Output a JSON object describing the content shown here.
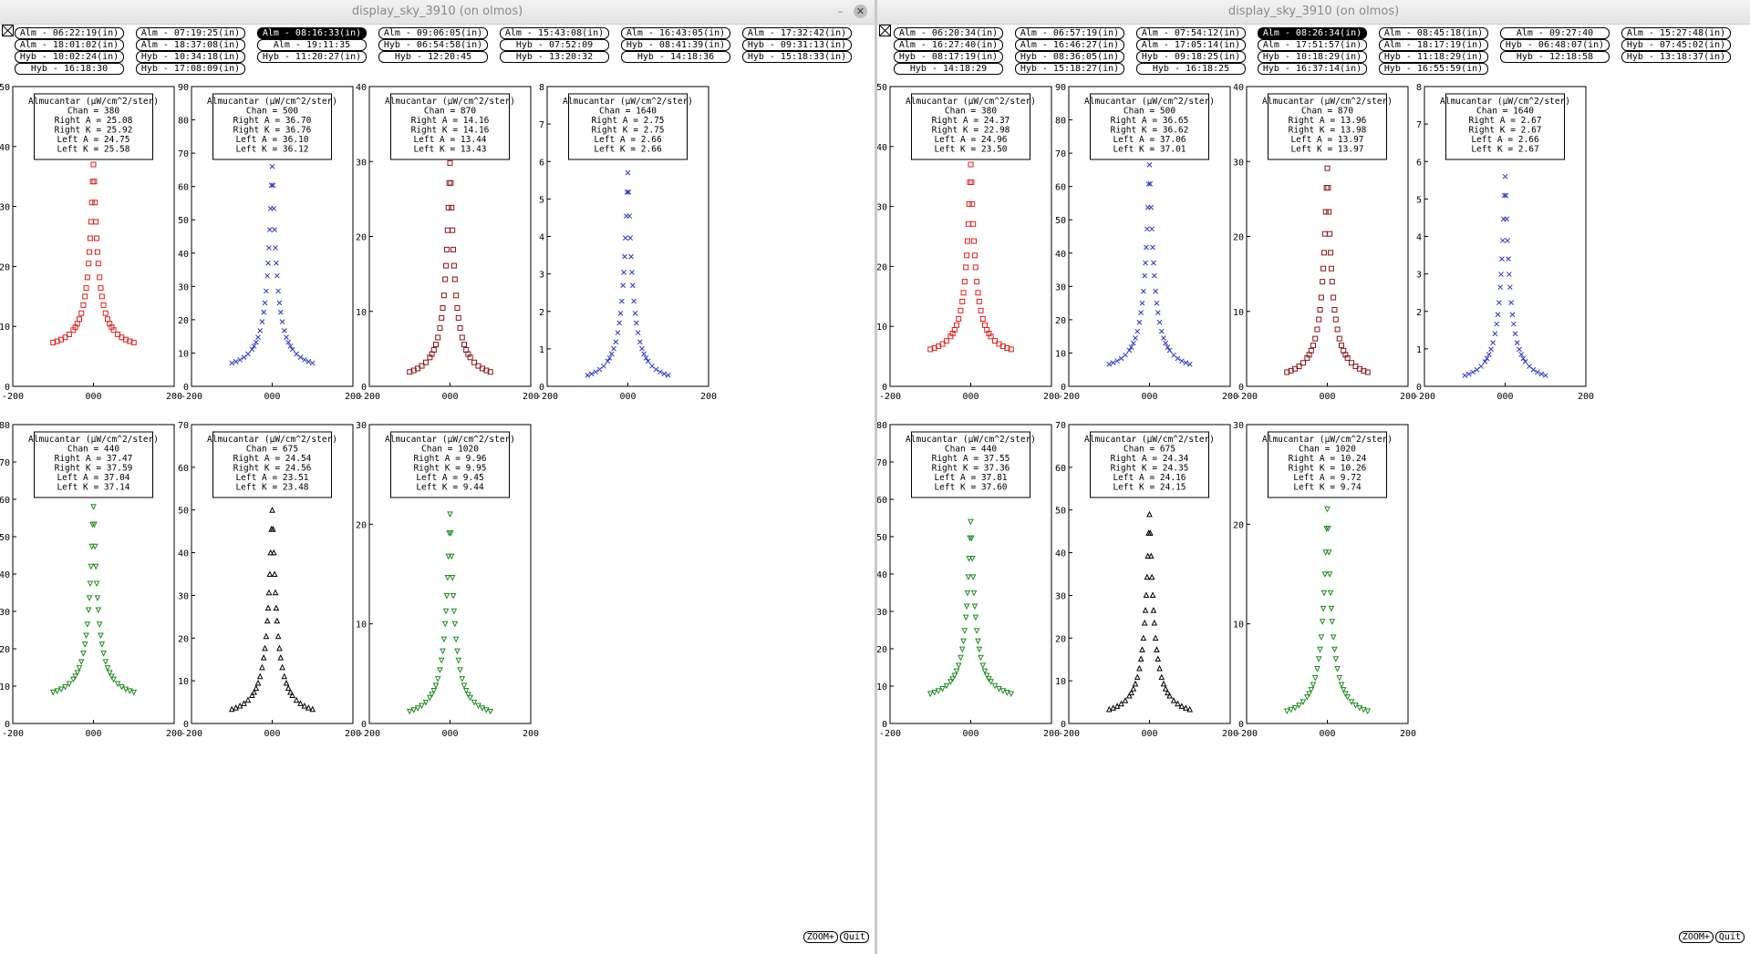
{
  "windows": [
    {
      "title": "display_sky_3910 (on olmos)",
      "buttons": [
        [
          "Alm - 06:22:19(in)",
          "Alm - 07:19:25(in)",
          "Alm - 08:16:33(in)",
          "Alm - 09:06:05(in)",
          "Alm - 15:43:08(in)",
          "Alm - 16:43:05(in)",
          "Alm - 17:32:42(in)"
        ],
        [
          "Alm - 18:01:02(in)",
          "Alm - 18:37:08(in)",
          "Alm - 19:11:35",
          "Hyb - 06:54:58(in)",
          "Hyb - 07:52:09",
          "Hyb - 08:41:39(in)",
          "Hyb - 09:31:13(in)"
        ],
        [
          "Hyb - 10:02:24(in)",
          "Hyb - 10:34:18(in)",
          "Hyb - 11:20:27(in)",
          "Hyb - 12:20:45",
          "Hyb - 13:20:32",
          "Hyb - 14:18:36",
          "Hyb - 15:18:33(in)"
        ],
        [
          "Hyb - 16:18:30",
          "Hyb - 17:08:09(in)"
        ]
      ],
      "active_button": "Alm - 08:16:33(in)",
      "zoom_label": "ZOOM+",
      "quit_label": "Quit",
      "panels": [
        {
          "ymax": 50,
          "yticks": [
            0,
            10,
            20,
            30,
            40,
            50
          ],
          "color": "#e0201c",
          "marker": "square",
          "box": [
            "Almucantar (µW/cm^2/ster)",
            "Chan = 380",
            "Right A = 25.08",
            "Right K = 25.92",
            "Left A = 24.75",
            "Left K = 25.58"
          ],
          "peak": 37,
          "base": 5.8,
          "xmin": -100,
          "xmax": 100
        },
        {
          "ymax": 90,
          "yticks": [
            0,
            10,
            20,
            30,
            40,
            50,
            60,
            70,
            80,
            90
          ],
          "color": "#2a36c8",
          "marker": "x",
          "box": [
            "Almucantar (µW/cm^2/ster)",
            "Chan = 500",
            "Right A = 36.70",
            "Right K = 36.76",
            "Left A = 36.10",
            "Left K = 36.12"
          ],
          "peak": 66,
          "base": 4,
          "xmin": -100,
          "xmax": 100
        },
        {
          "ymax": 40,
          "yticks": [
            0,
            10,
            20,
            30,
            40
          ],
          "color": "#8a1418",
          "marker": "square",
          "box": [
            "Almucantar (µW/cm^2/ster)",
            "Chan = 870",
            "Right A = 14.16",
            "Right K = 14.16",
            "Left A = 13.44",
            "Left K = 13.43"
          ],
          "peak": 29.8,
          "base": 0.5,
          "xmin": -100,
          "xmax": 100
        },
        {
          "ymax": 8,
          "yticks": [
            0,
            1,
            2,
            3,
            4,
            5,
            6,
            7,
            8
          ],
          "color": "#2a36c8",
          "marker": "x",
          "box": [
            "Almucantar (µW/cm^2/ster)",
            "Chan = 1640",
            "Right A = 2.75",
            "Right K = 2.75",
            "Left A = 2.66",
            "Left K = 2.66"
          ],
          "peak": 5.7,
          "base": 0.02,
          "xmin": -100,
          "xmax": 100
        },
        {
          "ymax": 80,
          "yticks": [
            0,
            10,
            20,
            30,
            40,
            50,
            60,
            70,
            80
          ],
          "color": "#1f8a1f",
          "marker": "tri-down",
          "box": [
            "Almucantar (µW/cm^2/ster)",
            "Chan = 440",
            "Right A = 37.47",
            "Right K = 37.59",
            "Left A = 37.04",
            "Left K = 37.14"
          ],
          "peak": 58,
          "base": 5.8,
          "xmin": -100,
          "xmax": 100
        },
        {
          "ymax": 70,
          "yticks": [
            0,
            10,
            20,
            30,
            40,
            50,
            60,
            70
          ],
          "color": "#000000",
          "marker": "tri-up",
          "box": [
            "Almucantar (µW/cm^2/ster)",
            "Chan = 675",
            "Right A = 24.54",
            "Right K = 24.56",
            "Left A = 23.51",
            "Left K = 23.48"
          ],
          "peak": 50,
          "base": 1,
          "xmin": -100,
          "xmax": 100
        },
        {
          "ymax": 30,
          "yticks": [
            0,
            10,
            20,
            30
          ],
          "color": "#1f8a1f",
          "marker": "tri-down",
          "box": [
            "Almucantar (µW/cm^2/ster)",
            "Chan = 1020",
            "Right A = 9.96",
            "Right K = 9.95",
            "Left A = 9.45",
            "Left K = 9.44"
          ],
          "peak": 21,
          "base": 0.2,
          "xmin": -100,
          "xmax": 100
        }
      ]
    },
    {
      "title": "display_sky_3910 (on olmos)",
      "buttons": [
        [
          "Alm - 06:20:34(in)",
          "Alm - 06:57:19(in)",
          "Alm - 07:54:12(in)",
          "Alm - 08:26:34(in)",
          "Alm - 08:45:18(in)",
          "Alm - 09:27:40",
          "Alm - 15:27:48(in)"
        ],
        [
          "Alm - 16:27:40(in)",
          "Alm - 16:46:27(in)",
          "Alm - 17:05:14(in)",
          "Alm - 17:51:57(in)",
          "Alm - 18:17:19(in)",
          "Hyb - 06:48:07(in)",
          "Hyb - 07:45:02(in)"
        ],
        [
          "Hyb - 08:17:19(in)",
          "Hyb - 08:36:05(in)",
          "Hyb - 09:18:25(in)",
          "Hyb - 10:18:29(in)",
          "Hyb - 11:18:29(in)",
          "Hyb - 12:18:58",
          "Hyb - 13:18:37(in)"
        ],
        [
          "Hyb - 14:18:29",
          "Hyb - 15:18:27(in)",
          "Hyb - 16:18:25",
          "Hyb - 16:37:14(in)",
          "Hyb - 16:55:59(in)"
        ]
      ],
      "active_button": "Alm - 08:26:34(in)",
      "zoom_label": "ZOOM+",
      "quit_label": "Quit",
      "panels": [
        {
          "ymax": 50,
          "yticks": [
            0,
            10,
            20,
            30,
            40,
            50
          ],
          "color": "#e0201c",
          "marker": "square",
          "box": [
            "Almucantar (µW/cm^2/ster)",
            "Chan = 380",
            "Right A = 24.37",
            "Right K = 22.98",
            "Left A = 24.96",
            "Left K = 23.50"
          ],
          "peak": 37,
          "base": 4.6,
          "xmin": -100,
          "xmax": 100
        },
        {
          "ymax": 90,
          "yticks": [
            0,
            10,
            20,
            30,
            40,
            50,
            60,
            70,
            80,
            90
          ],
          "color": "#2a36c8",
          "marker": "x",
          "box": [
            "Almucantar (µW/cm^2/ster)",
            "Chan = 500",
            "Right A = 36.65",
            "Right K = 36.62",
            "Left A = 37.06",
            "Left K = 37.01"
          ],
          "peak": 66.5,
          "base": 3.6,
          "xmin": -100,
          "xmax": 100
        },
        {
          "ymax": 40,
          "yticks": [
            0,
            10,
            20,
            30,
            40
          ],
          "color": "#8a1418",
          "marker": "square",
          "box": [
            "Almucantar (µW/cm^2/ster)",
            "Chan = 870",
            "Right A = 13.96",
            "Right K = 13.98",
            "Left A = 13.97",
            "Left K = 13.97"
          ],
          "peak": 29.1,
          "base": 0.5,
          "xmin": -100,
          "xmax": 100
        },
        {
          "ymax": 8,
          "yticks": [
            0,
            1,
            2,
            3,
            4,
            5,
            6,
            7,
            8
          ],
          "color": "#2a36c8",
          "marker": "x",
          "box": [
            "Almucantar (µW/cm^2/ster)",
            "Chan = 1640",
            "Right A = 2.67",
            "Right K = 2.67",
            "Left A = 2.66",
            "Left K = 2.67"
          ],
          "peak": 5.6,
          "base": 0.02,
          "xmin": -100,
          "xmax": 100
        },
        {
          "ymax": 80,
          "yticks": [
            0,
            10,
            20,
            30,
            40,
            50,
            60,
            70,
            80
          ],
          "color": "#1f8a1f",
          "marker": "tri-down",
          "box": [
            "Almucantar (µW/cm^2/ster)",
            "Chan = 440",
            "Right A = 37.55",
            "Right K = 37.36",
            "Left A = 37.81",
            "Left K = 37.60"
          ],
          "peak": 54,
          "base": 5.6,
          "xmin": -100,
          "xmax": 100
        },
        {
          "ymax": 70,
          "yticks": [
            0,
            10,
            20,
            30,
            40,
            50,
            60,
            70
          ],
          "color": "#000000",
          "marker": "tri-up",
          "box": [
            "Almucantar (µW/cm^2/ster)",
            "Chan = 675",
            "Right A = 24.34",
            "Right K = 24.35",
            "Left A = 24.16",
            "Left K = 24.15"
          ],
          "peak": 49,
          "base": 1,
          "xmin": -100,
          "xmax": 100
        },
        {
          "ymax": 30,
          "yticks": [
            0,
            10,
            20,
            30
          ],
          "color": "#1f8a1f",
          "marker": "tri-down",
          "box": [
            "Almucantar (µW/cm^2/ster)",
            "Chan = 1020",
            "Right A = 10.24",
            "Right K = 10.26",
            "Left A = 9.72",
            "Left K = 9.74"
          ],
          "peak": 21.5,
          "base": 0.2,
          "xmin": -100,
          "xmax": 100
        }
      ]
    }
  ],
  "x_tick_labels": [
    "-200",
    "000",
    "200"
  ]
}
